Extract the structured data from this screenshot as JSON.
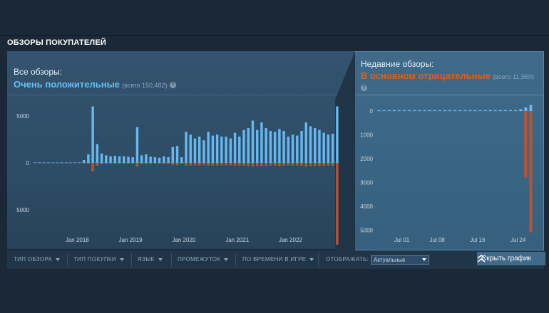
{
  "section_title": "ОБЗОРЫ ПОКУПАТЕЛЕЙ",
  "all_reviews": {
    "label": "Все обзоры:",
    "rating": "Очень положительные",
    "count_text": "(всего 150,482)",
    "help": "?"
  },
  "recent_reviews": {
    "label": "Недавние обзоры:",
    "rating": "В основном отрицательные",
    "count_text": "(всего 11,960)",
    "help": "?"
  },
  "colors": {
    "positive": "#66c0f4",
    "negative": "#d6621f",
    "positive_bar": "#66b8ee",
    "negative_bar": "#c0522a"
  },
  "chart_data": [
    {
      "type": "bar",
      "title": "Все обзоры",
      "y_ticks": [
        "5000",
        "0",
        "5000"
      ],
      "y_tick_values": [
        5000,
        0,
        -5000
      ],
      "x_ticks": [
        "Jan 2018",
        "Jan 2019",
        "Jan 2020",
        "Jan 2021",
        "Jan 2022"
      ],
      "x_tick_months": [
        10,
        22,
        34,
        46,
        58
      ],
      "ylim": [
        -9000,
        6500
      ],
      "series": [
        {
          "name": "positive",
          "values": [
            50,
            50,
            40,
            40,
            40,
            40,
            40,
            40,
            40,
            50,
            50,
            300,
            900,
            6000,
            2000,
            1000,
            800,
            700,
            750,
            700,
            700,
            650,
            600,
            3800,
            800,
            900,
            650,
            600,
            550,
            700,
            600,
            1700,
            1800,
            600,
            3300,
            3000,
            2600,
            2800,
            2400,
            3300,
            2900,
            3000,
            2800,
            2800,
            2600,
            3200,
            2800,
            3500,
            3700,
            4500,
            3500,
            4300,
            3700,
            3400,
            3300,
            3600,
            3400,
            2800,
            3000,
            2900,
            3400,
            4300,
            3900,
            3700,
            3500,
            3200,
            3000,
            3100,
            6000
          ]
        },
        {
          "name": "negative",
          "values": [
            0,
            0,
            0,
            0,
            0,
            0,
            0,
            0,
            0,
            0,
            0,
            -60,
            -100,
            -900,
            -300,
            -150,
            -120,
            -110,
            -120,
            -100,
            -100,
            -90,
            -80,
            -400,
            -120,
            -130,
            -110,
            -100,
            -90,
            -110,
            -100,
            -220,
            -240,
            -100,
            -300,
            -280,
            -260,
            -270,
            -250,
            -300,
            -290,
            -280,
            -270,
            -270,
            -260,
            -300,
            -280,
            -330,
            -340,
            -380,
            -330,
            -360,
            -330,
            -310,
            -300,
            -330,
            -310,
            -280,
            -290,
            -280,
            -320,
            -400,
            -360,
            -340,
            -330,
            -310,
            -300,
            -320,
            -8700
          ]
        }
      ]
    },
    {
      "type": "bar",
      "title": "Недавние обзоры",
      "y_ticks": [
        "0",
        "1000",
        "2000",
        "3000",
        "4000",
        "5000"
      ],
      "y_tick_values": [
        0,
        -1000,
        -2000,
        -3000,
        -4000,
        -5000
      ],
      "x_ticks": [
        "Jul 01",
        "Jul 08",
        "Jul 16",
        "Jul 24"
      ],
      "x_tick_days": [
        5,
        12,
        20,
        28
      ],
      "ylim": [
        -5200,
        300
      ],
      "series": [
        {
          "name": "positive",
          "values": [
            40,
            40,
            40,
            40,
            40,
            40,
            40,
            40,
            40,
            40,
            40,
            40,
            40,
            40,
            40,
            40,
            40,
            40,
            40,
            40,
            40,
            40,
            40,
            40,
            40,
            40,
            40,
            40,
            80,
            150,
            250
          ]
        },
        {
          "name": "negative",
          "values": [
            0,
            0,
            0,
            0,
            0,
            0,
            0,
            0,
            0,
            0,
            0,
            0,
            0,
            0,
            0,
            0,
            0,
            0,
            0,
            0,
            0,
            0,
            0,
            0,
            0,
            0,
            0,
            0,
            -15,
            -2800,
            -5100
          ]
        }
      ]
    }
  ],
  "toolbar": {
    "review_type": "ТИП ОБЗОРА",
    "purchase_type": "ТИП ПОКУПКИ",
    "language": "ЯЗЫК",
    "period": "ПРОМЕЖУТОК",
    "playtime": "ПО ВРЕМЕНИ В ИГРЕ",
    "display_label": "ОТОБРАЖАТЬ:",
    "display_value": "Актуальные",
    "hide_graph": "Скрыть график"
  }
}
